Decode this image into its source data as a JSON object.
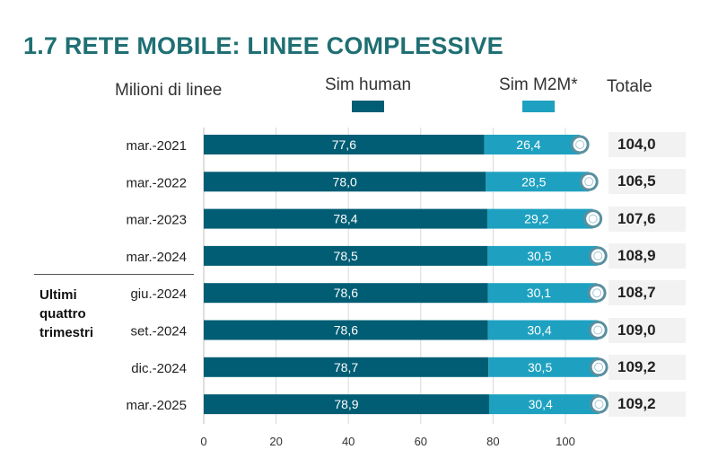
{
  "page": {
    "title": "1.7 RETE MOBILE: LINEE COMPLESSIVE"
  },
  "group_label": "Ultimi\nquattro\ntrimestri",
  "colors": {
    "human": "#005d74",
    "m2m": "#1ea1c0",
    "title": "#1f6f73"
  },
  "chart_data": {
    "type": "bar",
    "orientation": "horizontal",
    "stacked": true,
    "ylabel": "Milioni di linee",
    "categories": [
      "mar.-2021",
      "mar.-2022",
      "mar.-2023",
      "mar.-2024",
      "giu.-2024",
      "set.-2024",
      "dic.-2024",
      "mar.-2025"
    ],
    "series": [
      {
        "name": "Sim human",
        "values": [
          77.6,
          78.0,
          78.4,
          78.5,
          78.6,
          78.6,
          78.7,
          78.9
        ],
        "labels": [
          "77,6",
          "78,0",
          "78,4",
          "78,5",
          "78,6",
          "78,6",
          "78,7",
          "78,9"
        ]
      },
      {
        "name": "Sim M2M*",
        "values": [
          26.4,
          28.5,
          29.2,
          30.5,
          30.1,
          30.4,
          30.5,
          30.4
        ],
        "labels": [
          "26,4",
          "28,5",
          "29,2",
          "30,5",
          "30,1",
          "30,4",
          "30,5",
          "30,4"
        ]
      }
    ],
    "totals_header": "Totale",
    "totals": [
      104.0,
      106.5,
      107.6,
      108.9,
      108.7,
      109.0,
      109.2,
      109.2
    ],
    "totals_labels": [
      "104,0",
      "106,5",
      "107,6",
      "108,9",
      "108,7",
      "109,0",
      "109,2",
      "109,2"
    ],
    "xlim": [
      0,
      100
    ],
    "xticks": [
      0,
      20,
      40,
      60,
      80,
      100
    ],
    "grid": true
  }
}
